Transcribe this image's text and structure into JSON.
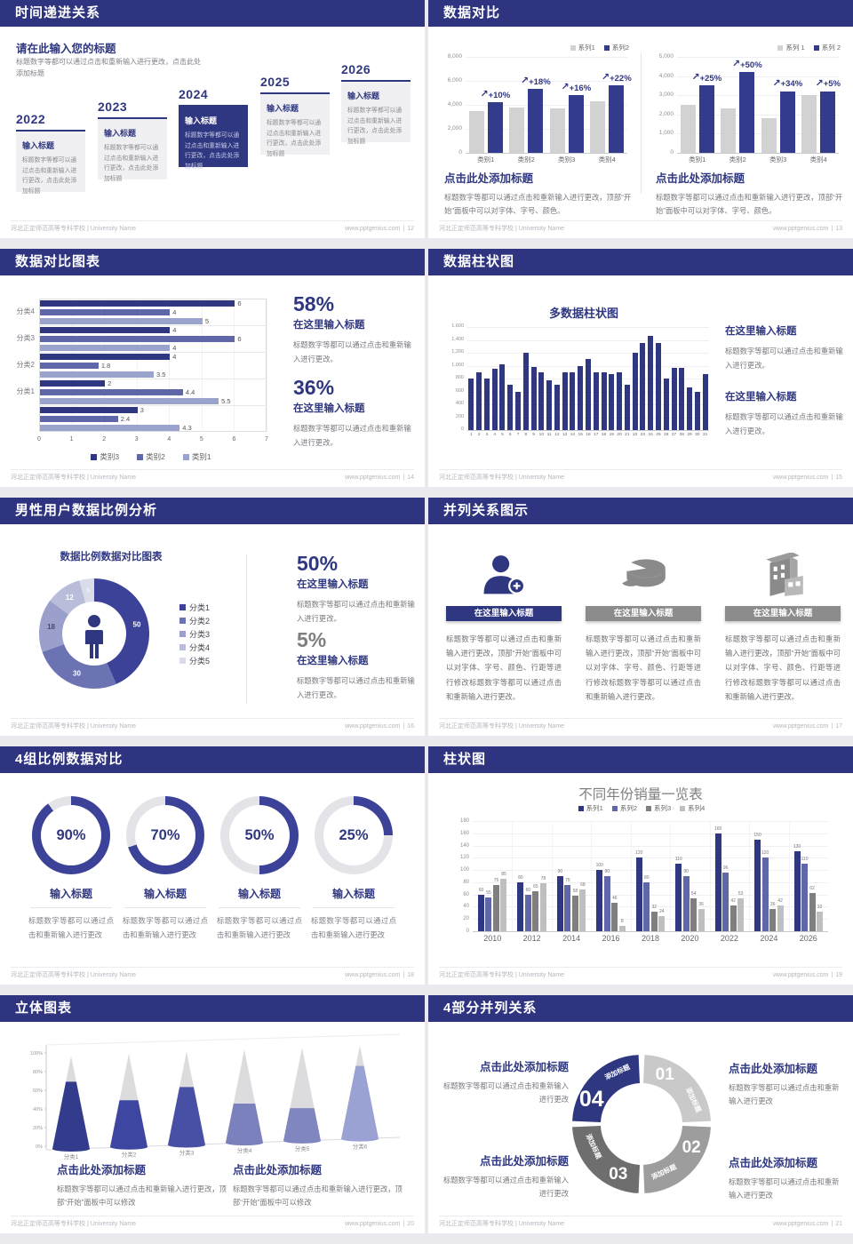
{
  "colors": {
    "header_bar": "#2f3480",
    "navy": "#2f3780",
    "mid_blue": "#5f67a9",
    "light_blue": "#9aa3cc",
    "bar_gray": "#d2d2d2",
    "dark_gray": "#7f7f7f",
    "light_gray": "#bfbfbf",
    "body_text": "#6f6f6f"
  },
  "footer": {
    "left": "河北正定师范高等专科学校 | University Name",
    "site": "www.pptgenius.com",
    "sep": "|"
  },
  "shared": {
    "input_title": "输入标题",
    "here_title": "在这里输入标题",
    "click_title": "点击此处添加标题",
    "body_click": "标题数字等都可以通过点击和重新输入进行更改，点击此处添加标题",
    "body_simple": "标题数字等都可以通过点击和重新输入进行更改。",
    "body_simple_nop": "标题数字等都可以通过点击和重新输入进行更改",
    "body_font": "标题数字等都可以通过点击和重新输入进行更改，顶部“开始”面板中可以对字体、字号、颜色。",
    "body_long": "标题数字等都可以通过点击和重新输入进行更改，顶部“开始”面板中可以对字体、字号、颜色、行距等进行修改标题数字等都可以通过点击和重新输入进行更改。",
    "body_modify": "标题数字等都可以通过点击和重新输入进行更改，顶部“开始”面板中可以修改"
  },
  "slides": {
    "s12": {
      "header": "时间递进关系",
      "page": "12",
      "heading": "请在此输入您的标题",
      "years": [
        "2022",
        "2023",
        "2024",
        "2025",
        "2026"
      ]
    },
    "s13": {
      "header": "数据对比",
      "page": "13"
    },
    "s14": {
      "header": "数据对比图表",
      "page": "14",
      "stat1": "58%",
      "stat2": "36%"
    },
    "s15": {
      "header": "数据柱状图",
      "page": "15"
    },
    "s16": {
      "header": "男性用户数据比例分析",
      "page": "16",
      "stat1": "50%",
      "stat2": "5%"
    },
    "s17": {
      "header": "并列关系图示",
      "page": "17"
    },
    "s18": {
      "header": "4组比例数据对比",
      "page": "18"
    },
    "s19": {
      "header": "柱状图",
      "page": "19"
    },
    "s20": {
      "header": "立体图表",
      "page": "20"
    },
    "s21": {
      "header": "4部分并列关系",
      "page": "21",
      "numbers": [
        "01",
        "02",
        "03",
        "04"
      ],
      "seg_label": "添加标题"
    }
  },
  "chart_data": [
    {
      "id": "s13-left",
      "type": "bar",
      "categories": [
        "类别1",
        "类别2",
        "类别3",
        "类别4"
      ],
      "series": [
        {
          "name": "系列1",
          "color": "#d2d2d2",
          "values": [
            3500,
            3800,
            3700,
            4300
          ]
        },
        {
          "name": "系列2",
          "color": "#333c8c",
          "values": [
            4200,
            5300,
            4800,
            5600
          ]
        }
      ],
      "annotations": [
        "+10%",
        "+18%",
        "+16%",
        "+22%"
      ],
      "ylim": [
        0,
        8000
      ],
      "ytick": 2000,
      "legend_position": "top-right",
      "grid": true
    },
    {
      "id": "s13-right",
      "type": "bar",
      "categories": [
        "类别1",
        "类别2",
        "类别3",
        "类别4"
      ],
      "series": [
        {
          "name": "系列 1",
          "color": "#d2d2d2",
          "values": [
            2500,
            2300,
            1800,
            3000
          ]
        },
        {
          "name": "系列 2",
          "color": "#333c8c",
          "values": [
            3500,
            4200,
            3200,
            3200
          ]
        }
      ],
      "annotations": [
        "+25%",
        "+50%",
        "+34%",
        "+5%"
      ],
      "ylim": [
        0,
        5000
      ],
      "ytick": 1000,
      "legend_position": "top-right",
      "grid": true
    },
    {
      "id": "s14-hbar",
      "type": "bar",
      "orientation": "horizontal",
      "categories": [
        "分类4",
        "分类3",
        "分类2",
        "分类1",
        ""
      ],
      "series": [
        {
          "name": "类别3",
          "color": "#2f3780",
          "values": [
            6,
            4,
            4,
            2,
            3
          ]
        },
        {
          "name": "类别2",
          "color": "#5f67a9",
          "values": [
            4,
            6,
            1.8,
            4.4,
            2.4
          ]
        },
        {
          "name": "类别1",
          "color": "#9aa3cc",
          "values": [
            5,
            4,
            3.5,
            5.5,
            4.3
          ]
        }
      ],
      "xlim": [
        0,
        7
      ],
      "xtick": 1,
      "legend_position": "bottom",
      "value_labels": true
    },
    {
      "id": "s15-bars",
      "type": "bar",
      "title": "多数据柱状图",
      "categories": [
        "1",
        "2",
        "3",
        "4",
        "5",
        "6",
        "7",
        "8",
        "9",
        "10",
        "11",
        "12",
        "13",
        "14",
        "15",
        "16",
        "17",
        "18",
        "19",
        "20",
        "21",
        "22",
        "23",
        "24",
        "25",
        "26",
        "27",
        "28",
        "29",
        "30",
        "31"
      ],
      "values": [
        800,
        900,
        800,
        950,
        1025,
        700,
        600,
        1200,
        975,
        900,
        775,
        700,
        890,
        890,
        990,
        1100,
        900,
        900,
        875,
        900,
        700,
        1200,
        1350,
        1460,
        1350,
        800,
        960,
        965,
        660,
        600,
        870
      ],
      "color": "#2f3780",
      "ylim": [
        0,
        1600
      ],
      "ytick": 200,
      "grid": true
    },
    {
      "id": "s16-donut",
      "type": "pie",
      "title": "数据比例数据对比图表",
      "labels": [
        "分类1",
        "分类2",
        "分类3",
        "分类4",
        "分类5"
      ],
      "values": [
        50,
        30,
        18,
        12,
        5
      ],
      "colors": [
        "#3b4297",
        "#6b73b3",
        "#9aa0cb",
        "#b9bdd9",
        "#dadcea"
      ],
      "legend_position": "right"
    },
    {
      "id": "s18-rings",
      "type": "pie",
      "variant": "progress-rings",
      "values": [
        90,
        70,
        50,
        25
      ],
      "labels": [
        "90%",
        "70%",
        "50%",
        "25%"
      ],
      "color": "#3b4297",
      "track": "#e3e3e8"
    },
    {
      "id": "s19-columns",
      "type": "bar",
      "title": "不同年份销量一览表",
      "categories": [
        "2010",
        "2012",
        "2014",
        "2016",
        "2018",
        "2020",
        "2022",
        "2024",
        "2026"
      ],
      "series": [
        {
          "name": "系列1",
          "color": "#2f3780",
          "values": [
            60,
            80,
            90,
            100,
            120,
            110,
            160,
            150,
            130
          ]
        },
        {
          "name": "系列2",
          "color": "#5f67a9",
          "values": [
            55,
            60,
            75,
            90,
            80,
            90,
            96,
            120,
            110
          ]
        },
        {
          "name": "系列3",
          "color": "#7f7f7f",
          "values": [
            75,
            65,
            58,
            46,
            32,
            54,
            42,
            36,
            62
          ]
        },
        {
          "name": "系列4",
          "color": "#bfbfbf",
          "values": [
            85,
            78,
            68,
            8,
            24,
            36,
            53,
            42,
            32
          ]
        }
      ],
      "ylim": [
        0,
        180
      ],
      "ytick": 20,
      "legend_position": "top-center",
      "value_labels": true
    },
    {
      "id": "s20-cones",
      "type": "bar",
      "variant": "cone-3d",
      "categories": [
        "分类1",
        "分类2",
        "分类3",
        "分类4",
        "分类5",
        "分类6"
      ],
      "values": [
        72,
        50,
        62,
        42,
        35,
        78
      ],
      "colors": [
        "#333c8c",
        "#3d46a0",
        "#4750a5",
        "#7a81bd",
        "#8087c0",
        "#9aa2d4"
      ],
      "ylim": [
        0,
        100
      ],
      "ytick": 20,
      "ylabels": [
        "0%",
        "20%",
        "40%",
        "60%",
        "80%",
        "100%"
      ]
    }
  ]
}
